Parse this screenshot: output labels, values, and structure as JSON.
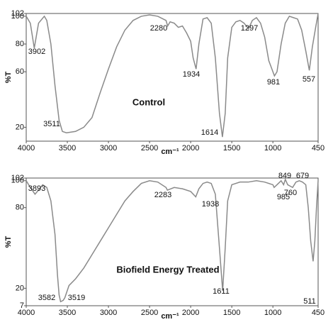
{
  "chart_data": [
    {
      "type": "line",
      "title": "Control",
      "xlabel": "cm⁻¹",
      "ylabel": "%T",
      "xlim": [
        4000,
        450
      ],
      "xticks": [
        4000,
        3500,
        3000,
        2500,
        2000,
        1500,
        1000,
        450
      ],
      "ylim": [
        10,
        102
      ],
      "yticks": [
        20,
        60,
        80,
        100,
        102
      ],
      "grid": false,
      "x": [
        4000,
        3950,
        3902,
        3850,
        3780,
        3750,
        3700,
        3650,
        3600,
        3560,
        3511,
        3400,
        3300,
        3200,
        3100,
        3000,
        2900,
        2800,
        2700,
        2600,
        2500,
        2400,
        2300,
        2280,
        2250,
        2200,
        2150,
        2100,
        2050,
        2000,
        1970,
        1934,
        1900,
        1850,
        1800,
        1750,
        1700,
        1650,
        1614,
        1580,
        1550,
        1500,
        1450,
        1400,
        1350,
        1297,
        1250,
        1200,
        1150,
        1100,
        1050,
        981,
        950,
        900,
        850,
        800,
        750,
        700,
        650,
        600,
        557,
        520,
        480,
        450
      ],
      "series": [
        {
          "name": "Control",
          "color": "#8a8a8a",
          "values": [
            100,
            95,
            77,
            95,
            100,
            97,
            80,
            50,
            25,
            17,
            16,
            17,
            20,
            27,
            45,
            62,
            78,
            90,
            97,
            100,
            101,
            100,
            97,
            93,
            96,
            95,
            92,
            93,
            88,
            82,
            70,
            62,
            80,
            98,
            99,
            95,
            70,
            30,
            13,
            30,
            70,
            92,
            96,
            97,
            95,
            91,
            97,
            99,
            95,
            85,
            68,
            57,
            60,
            80,
            95,
            100,
            99,
            98,
            90,
            75,
            61,
            78,
            92,
            102
          ]
        }
      ],
      "peaks": [
        3902,
        2280,
        1934,
        1297,
        981,
        557,
        3511,
        1614
      ]
    },
    {
      "type": "line",
      "title": "Biofield Energy Treated",
      "xlabel": "cm⁻¹",
      "ylabel": "%T",
      "xlim": [
        4000,
        450
      ],
      "xticks": [
        4000,
        3500,
        3000,
        2500,
        2000,
        1500,
        1000,
        450
      ],
      "ylim": [
        7,
        102
      ],
      "yticks": [
        7,
        20,
        80,
        100,
        102
      ],
      "grid": false,
      "x": [
        4000,
        3950,
        3893,
        3850,
        3800,
        3750,
        3700,
        3650,
        3620,
        3600,
        3582,
        3550,
        3530,
        3519,
        3480,
        3400,
        3300,
        3200,
        3100,
        3000,
        2900,
        2800,
        2700,
        2600,
        2500,
        2400,
        2300,
        2283,
        2200,
        2100,
        2000,
        1938,
        1900,
        1850,
        1800,
        1750,
        1700,
        1650,
        1611,
        1580,
        1550,
        1500,
        1400,
        1300,
        1200,
        1100,
        1000,
        985,
        950,
        900,
        870,
        849,
        820,
        790,
        760,
        720,
        679,
        640,
        600,
        570,
        540,
        511,
        490,
        470,
        450
      ],
      "series": [
        {
          "name": "Biofield Energy Treated",
          "color": "#8a8a8a",
          "values": [
            100,
            95,
            90,
            93,
            97,
            95,
            85,
            60,
            30,
            15,
            10,
            11,
            13,
            15,
            22,
            27,
            35,
            45,
            55,
            65,
            75,
            85,
            92,
            98,
            100,
            99,
            95,
            93,
            95,
            94,
            92,
            88,
            94,
            98,
            99,
            98,
            90,
            50,
            18,
            50,
            85,
            97,
            99,
            99,
            100,
            99,
            97,
            95,
            97,
            100,
            97,
            101,
            97,
            96,
            95,
            99,
            100,
            99,
            97,
            80,
            55,
            40,
            55,
            80,
            100
          ]
        }
      ],
      "peaks": [
        3893,
        2283,
        1938,
        985,
        849,
        679,
        760,
        3582,
        3519,
        1611,
        511
      ]
    }
  ]
}
